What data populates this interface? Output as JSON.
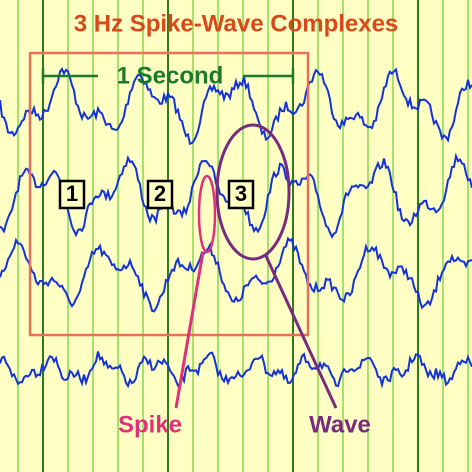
{
  "title": "3 Hz Spike-Wave Complexes",
  "scale_label": "1 Second",
  "markers": [
    "1",
    "2",
    "3"
  ],
  "annotations": {
    "spike": "Spike",
    "wave": "Wave"
  }
}
